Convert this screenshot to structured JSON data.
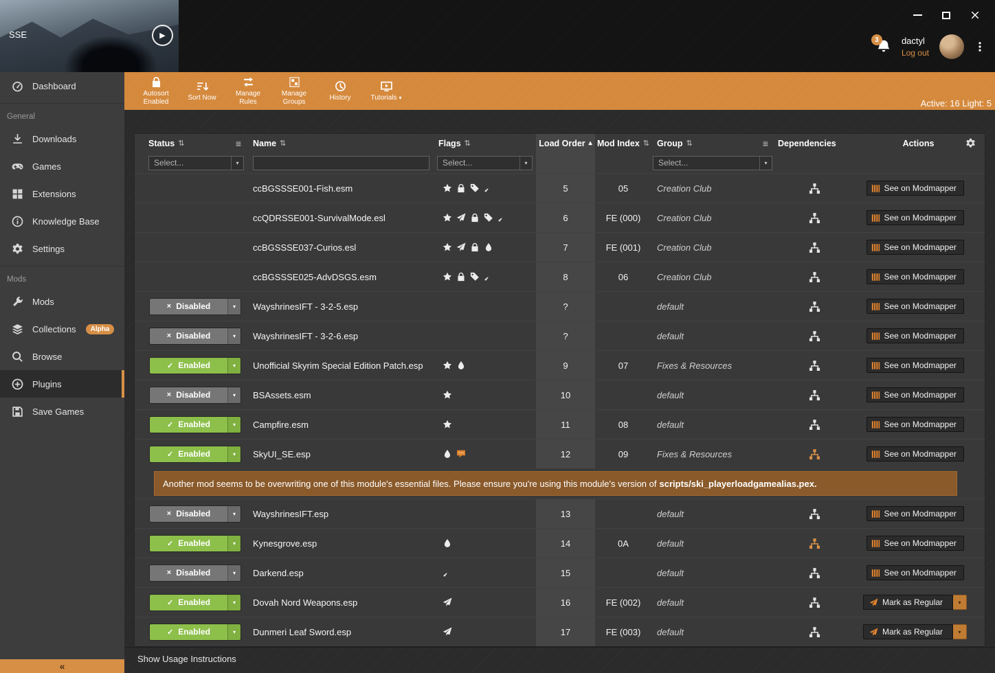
{
  "app": {
    "label": "SSE"
  },
  "user": {
    "name": "dactyl",
    "logout_label": "Log out",
    "notification_count": "3"
  },
  "toolbar": {
    "status_text": "Active: 16 Light: 5",
    "buttons": [
      {
        "id": "autosort",
        "icon": "lock-icon",
        "label": "Autosort Enabled"
      },
      {
        "id": "sort-now",
        "icon": "sort-icon",
        "label": "Sort Now"
      },
      {
        "id": "manage-rules",
        "icon": "rules-icon",
        "label": "Manage Rules"
      },
      {
        "id": "manage-groups",
        "icon": "groups-icon",
        "label": "Manage Groups"
      },
      {
        "id": "history",
        "icon": "history-icon",
        "label": "History"
      },
      {
        "id": "tutorials",
        "icon": "tutorials-icon",
        "label": "Tutorials",
        "caret": true
      }
    ]
  },
  "sidebar": {
    "sections": [
      {
        "items": [
          {
            "id": "dashboard",
            "icon": "dashboard-icon",
            "label": "Dashboard"
          }
        ]
      },
      {
        "header": "General",
        "items": [
          {
            "id": "downloads",
            "icon": "download-icon",
            "label": "Downloads"
          },
          {
            "id": "games",
            "icon": "gamepad-icon",
            "label": "Games"
          },
          {
            "id": "extensions",
            "icon": "extensions-icon",
            "label": "Extensions"
          },
          {
            "id": "knowledge-base",
            "icon": "info-icon",
            "label": "Knowledge Base"
          },
          {
            "id": "settings",
            "icon": "gear-icon",
            "label": "Settings"
          }
        ]
      },
      {
        "header": "Mods",
        "items": [
          {
            "id": "mods",
            "icon": "wrench-icon",
            "label": "Mods"
          },
          {
            "id": "collections",
            "icon": "layers-icon",
            "label": "Collections",
            "badge": "Alpha"
          },
          {
            "id": "browse",
            "icon": "search-icon",
            "label": "Browse"
          },
          {
            "id": "plugins",
            "icon": "plugin-icon",
            "label": "Plugins",
            "active": true
          },
          {
            "id": "save-games",
            "icon": "save-icon",
            "label": "Save Games"
          }
        ]
      }
    ],
    "collapse_glyph": "«"
  },
  "table": {
    "columns": [
      {
        "id": "status",
        "label": "Status",
        "sort": "both"
      },
      {
        "id": "name",
        "label": "Name",
        "sort": "both"
      },
      {
        "id": "flags",
        "label": "Flags",
        "sort": "both"
      },
      {
        "id": "load_order",
        "label": "Load Order",
        "sort": "asc"
      },
      {
        "id": "mod_index",
        "label": "Mod Index",
        "sort": "both"
      },
      {
        "id": "group",
        "label": "Group",
        "sort": "both"
      },
      {
        "id": "dependencies",
        "label": "Dependencies"
      },
      {
        "id": "actions",
        "label": "Actions"
      }
    ],
    "filters": {
      "status": "Select...",
      "name": "",
      "flags": "Select...",
      "group": "Select..."
    },
    "status_labels": {
      "enabled": "Enabled",
      "disabled": "Disabled"
    },
    "action_labels": {
      "modmapper": "See on Modmapper",
      "mark_regular": "Mark as Regular"
    },
    "rows": [
      {
        "name": "ccBGSSSE001-Fish.esm",
        "status": null,
        "flags": [
          "star",
          "lock",
          "tags",
          "dagger"
        ],
        "load_order": "5",
        "mod_index": "05",
        "group": "Creation Club",
        "action": "modmapper"
      },
      {
        "name": "ccQDRSSE001-SurvivalMode.esl",
        "status": null,
        "flags": [
          "star",
          "feather",
          "lock",
          "tags",
          "dagger"
        ],
        "load_order": "6",
        "mod_index": "FE (000)",
        "group": "Creation Club",
        "action": "modmapper"
      },
      {
        "name": "ccBGSSSE037-Curios.esl",
        "status": null,
        "flags": [
          "star",
          "feather",
          "lock",
          "droplet"
        ],
        "load_order": "7",
        "mod_index": "FE (001)",
        "group": "Creation Club",
        "action": "modmapper"
      },
      {
        "name": "ccBGSSSE025-AdvDSGS.esm",
        "status": null,
        "flags": [
          "star",
          "lock",
          "tags",
          "dagger"
        ],
        "load_order": "8",
        "mod_index": "06",
        "group": "Creation Club",
        "action": "modmapper"
      },
      {
        "name": "WayshrinesIFT - 3-2-5.esp",
        "status": "disabled",
        "flags": [],
        "load_order": "?",
        "mod_index": "",
        "group": "default",
        "action": "modmapper"
      },
      {
        "name": "WayshrinesIFT - 3-2-6.esp",
        "status": "disabled",
        "flags": [],
        "load_order": "?",
        "mod_index": "",
        "group": "default",
        "action": "modmapper"
      },
      {
        "name": "Unofficial Skyrim Special Edition Patch.esp",
        "status": "enabled",
        "flags": [
          "star",
          "droplet"
        ],
        "load_order": "9",
        "mod_index": "07",
        "group": "Fixes & Resources",
        "action": "modmapper"
      },
      {
        "name": "BSAssets.esm",
        "status": "disabled",
        "flags": [
          "star"
        ],
        "load_order": "10",
        "mod_index": "",
        "group": "default",
        "action": "modmapper"
      },
      {
        "name": "Campfire.esm",
        "status": "enabled",
        "flags": [
          "star"
        ],
        "load_order": "11",
        "mod_index": "08",
        "group": "default",
        "action": "modmapper"
      },
      {
        "name": "SkyUI_SE.esp",
        "status": "enabled",
        "flags": [
          "droplet",
          "message"
        ],
        "load_order": "12",
        "mod_index": "09",
        "group": "Fixes & Resources",
        "action": "modmapper",
        "dep_highlight": true,
        "warning": true
      },
      {
        "name": "WayshrinesIFT.esp",
        "status": "disabled",
        "flags": [],
        "load_order": "13",
        "mod_index": "",
        "group": "default",
        "action": "modmapper"
      },
      {
        "name": "Kynesgrove.esp",
        "status": "enabled",
        "flags": [
          "droplet"
        ],
        "load_order": "14",
        "mod_index": "0A",
        "group": "default",
        "action": "modmapper",
        "dep_highlight": true
      },
      {
        "name": "Darkend.esp",
        "status": "disabled",
        "flags": [
          "dagger"
        ],
        "load_order": "15",
        "mod_index": "",
        "group": "default",
        "action": "modmapper"
      },
      {
        "name": "Dovah Nord Weapons.esp",
        "status": "enabled",
        "flags": [
          "feather"
        ],
        "load_order": "16",
        "mod_index": "FE (002)",
        "group": "default",
        "action": "mark_regular"
      },
      {
        "name": "Dunmeri Leaf Sword.esp",
        "status": "enabled",
        "flags": [
          "feather"
        ],
        "load_order": "17",
        "mod_index": "FE (003)",
        "group": "default",
        "action": "mark_regular"
      }
    ]
  },
  "banner": {
    "text": "Another mod seems to be overwriting one of this module's essential files. Please ensure you're using this module's version of",
    "file": "scripts/ski_playerloadgamealias.pex."
  },
  "footer": {
    "label": "Show Usage Instructions"
  },
  "colors": {
    "accent": "#d78f46",
    "enabled_green": "#8dbf4b",
    "disabled_gray": "#767676",
    "banner_bg": "#8a5a2b"
  }
}
